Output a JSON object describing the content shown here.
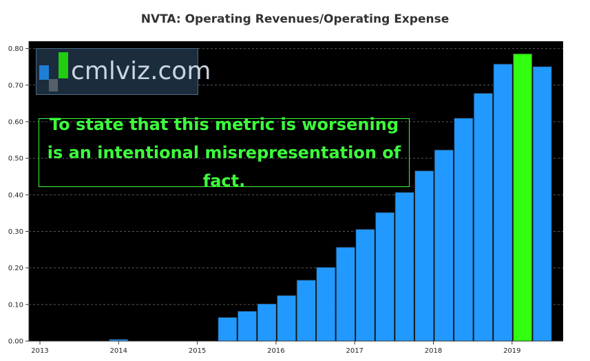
{
  "chart_data": {
    "type": "bar",
    "title": "NVTA: Operating Revenues/Operating Expense",
    "xlabel": "",
    "ylabel": "",
    "ylim": [
      0,
      0.82
    ],
    "y_ticks": [
      "0.00",
      "0.10",
      "0.20",
      "0.30",
      "0.40",
      "0.50",
      "0.60",
      "0.70",
      "0.80"
    ],
    "x_ticks": [
      "2013",
      "2014",
      "2015",
      "2016",
      "2017",
      "2018",
      "2019"
    ],
    "grid": "horizontal dashed",
    "background": "#000000",
    "bar_color": "#2299ff",
    "highlight_color": "#33ff11",
    "bars": [
      {
        "period": "2014",
        "value": 0.005
      },
      {
        "period": "2015 Q3",
        "value": 0.065
      },
      {
        "period": "2015 Q4",
        "value": 0.082
      },
      {
        "period": "2016 Q1",
        "value": 0.102
      },
      {
        "period": "2016 Q2",
        "value": 0.125
      },
      {
        "period": "2016 Q3",
        "value": 0.167
      },
      {
        "period": "2016 Q4",
        "value": 0.202
      },
      {
        "period": "2017 Q1",
        "value": 0.257
      },
      {
        "period": "2017 Q2",
        "value": 0.306
      },
      {
        "period": "2017 Q3",
        "value": 0.352
      },
      {
        "period": "2017 Q4",
        "value": 0.407
      },
      {
        "period": "2018 Q1",
        "value": 0.466
      },
      {
        "period": "2018 Q2",
        "value": 0.523
      },
      {
        "period": "2018 Q3",
        "value": 0.61
      },
      {
        "period": "2018 Q4",
        "value": 0.678
      },
      {
        "period": "2019 Q1",
        "value": 0.758
      },
      {
        "period": "2019 Q2",
        "value": 0.786,
        "highlight": true
      },
      {
        "period": "2019 Q3",
        "value": 0.751
      }
    ],
    "annotation": "To state that this metric is worsening is an intentional misrepresentation of fact."
  },
  "watermark": {
    "text": "cmlviz.com",
    "colors": [
      "#1f7fd6",
      "#22cc11",
      "#555f6a"
    ]
  }
}
